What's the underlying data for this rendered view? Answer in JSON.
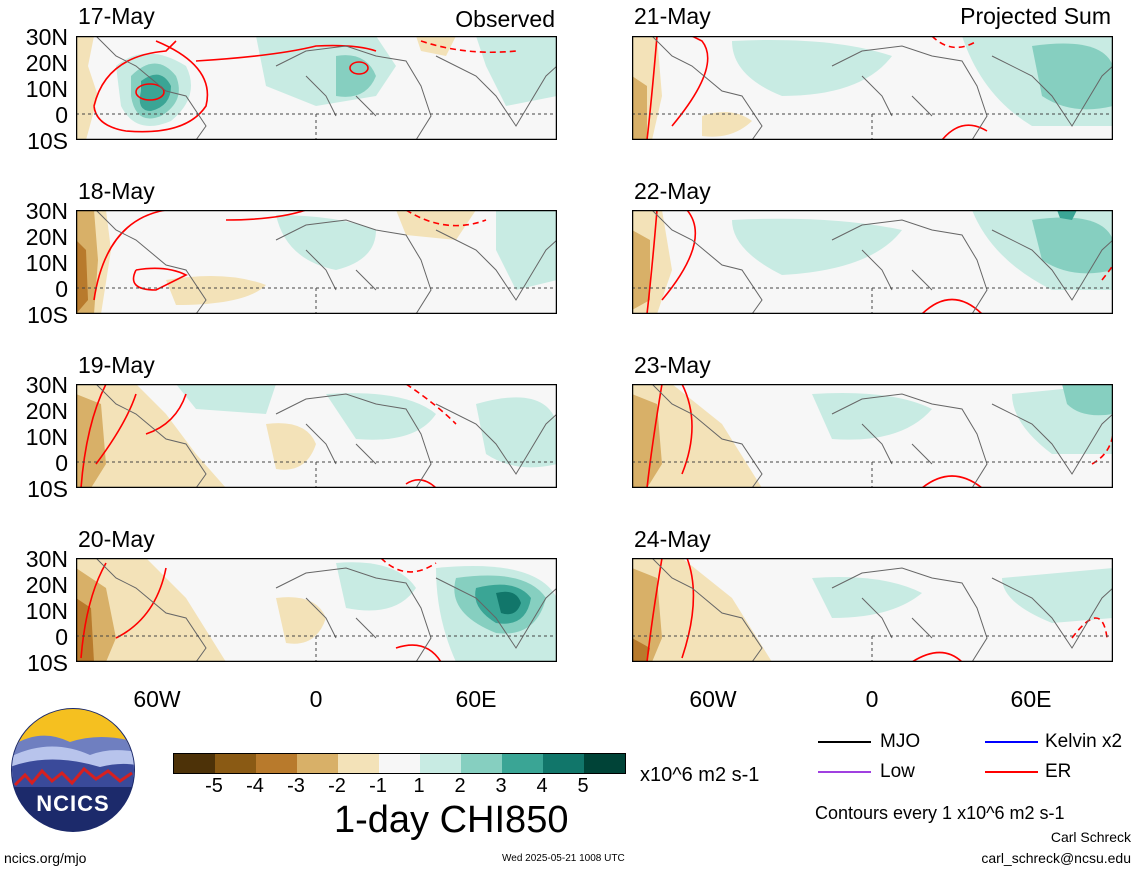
{
  "panels": [
    {
      "date": "17-May",
      "tag": "Observed"
    },
    {
      "date": "18-May",
      "tag": ""
    },
    {
      "date": "19-May",
      "tag": ""
    },
    {
      "date": "20-May",
      "tag": ""
    },
    {
      "date": "21-May",
      "tag": "Projected Sum"
    },
    {
      "date": "22-May",
      "tag": ""
    },
    {
      "date": "23-May",
      "tag": ""
    },
    {
      "date": "24-May",
      "tag": ""
    }
  ],
  "lat_labels": [
    "30N",
    "20N",
    "10N",
    "0",
    "10S"
  ],
  "lon_labels": [
    "60W",
    "0",
    "60E"
  ],
  "colorbar": {
    "ticks": [
      "-5",
      "-4",
      "-3",
      "-2",
      "-1",
      "1",
      "2",
      "3",
      "4",
      "5"
    ],
    "colors": [
      "#4d3208",
      "#8a5a14",
      "#b87a2c",
      "#d8b068",
      "#f3e2b8",
      "#f7f7f7",
      "#c8ebe3",
      "#86cfc0",
      "#3aa595",
      "#11766a",
      "#004337"
    ],
    "units": "x10^6 m2 s-1",
    "title": "1-day CHI850"
  },
  "legend": {
    "items": [
      {
        "label": "MJO",
        "color": "#000000"
      },
      {
        "label": "Kelvin x2",
        "color": "#0000ff"
      },
      {
        "label": "Low",
        "color": "#a040e0"
      },
      {
        "label": "ER",
        "color": "#ff0000"
      }
    ],
    "contours": "Contours every 1 x10^6 m2 s-1"
  },
  "logo": {
    "text": "NCICS"
  },
  "footer": {
    "url": "ncics.org/mjo",
    "timestamp": "Wed 2025-05-21 1008 UTC",
    "author": "Carl Schreck",
    "email": "carl_schreck@ncsu.edu"
  }
}
